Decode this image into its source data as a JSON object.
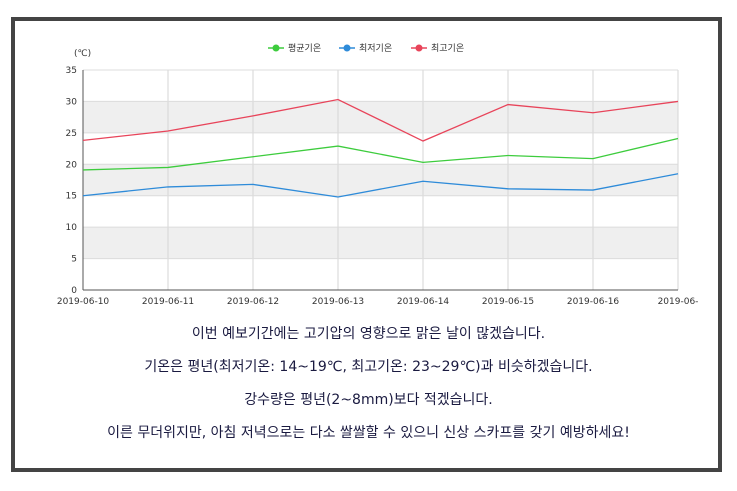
{
  "chart_data": {
    "type": "line",
    "unit_label": "(℃)",
    "categories": [
      "2019-06-10",
      "2019-06-11",
      "2019-06-12",
      "2019-06-13",
      "2019-06-14",
      "2019-06-15",
      "2019-06-16",
      "2019-06-"
    ],
    "yticks": [
      0,
      5,
      10,
      15,
      20,
      25,
      30,
      35
    ],
    "ylim": [
      0,
      35
    ],
    "grid": "horizontal bands and vertical lines",
    "legend_position": "top-center",
    "series": [
      {
        "name": "평균기온",
        "color": "#3dcc3d",
        "values": [
          19.1,
          19.5,
          21.2,
          22.9,
          20.3,
          21.4,
          20.9,
          24.1
        ]
      },
      {
        "name": "최저기온",
        "color": "#2e8bd9",
        "values": [
          15.0,
          16.4,
          16.8,
          14.8,
          17.3,
          16.1,
          15.9,
          18.5
        ]
      },
      {
        "name": "최고기온",
        "color": "#e8445a",
        "values": [
          23.8,
          25.3,
          27.7,
          30.3,
          23.7,
          29.5,
          28.2,
          30.0
        ]
      }
    ]
  },
  "caption": {
    "line1": "이번 예보기간에는 고기압의 영향으로 맑은 날이 많겠습니다.",
    "line2": "기온은 평년(최저기온: 14~19℃, 최고기온: 23~29℃)과 비슷하겠습니다.",
    "line3": "강수량은 평년(2~8mm)보다 적겠습니다.",
    "line4": "이른 무더위지만, 아침 저녁으로는 다소 쌀쌀할 수 있으니 신상 스카프를 갖기 예방하세요!"
  }
}
